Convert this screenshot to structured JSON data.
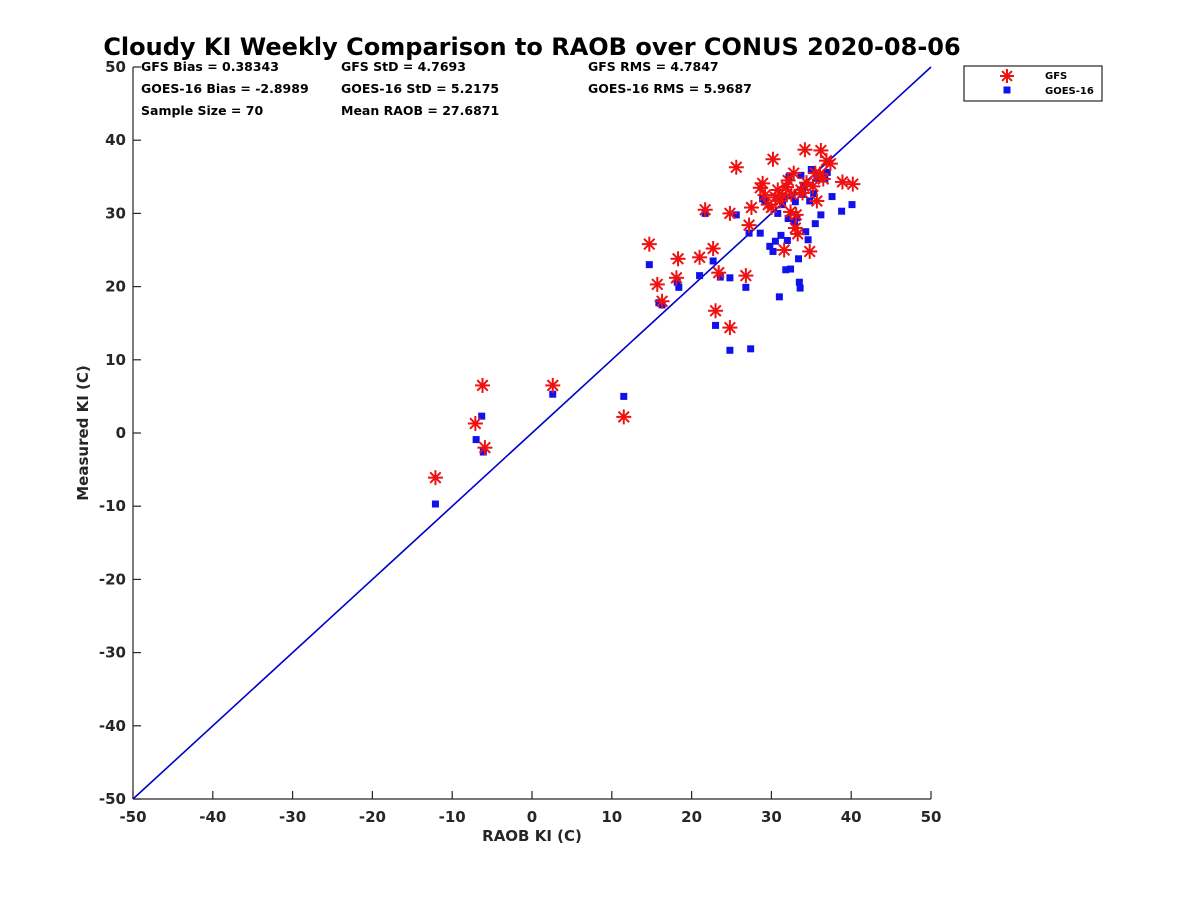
{
  "chart_data": {
    "type": "scatter",
    "title": "Cloudy KI Weekly Comparison to RAOB over CONUS 2020-08-06",
    "xlabel": "RAOB KI (C)",
    "ylabel": "Measured KI (C)",
    "xlim": [
      -50,
      50
    ],
    "ylim": [
      -50,
      50
    ],
    "xticks": [
      "-50",
      "-40",
      "-30",
      "-20",
      "-10",
      "0",
      "10",
      "20",
      "30",
      "40",
      "50"
    ],
    "yticks": [
      "-50",
      "-40",
      "-30",
      "-20",
      "-10",
      "0",
      "10",
      "20",
      "30",
      "40",
      "50"
    ],
    "grid": false,
    "legend_position": "top-right (outside)",
    "stats": [
      "GFS Bias = 0.38343",
      "GFS StD = 4.7693",
      "GFS RMS = 4.7847",
      "GOES-16 Bias = -2.8989",
      "GOES-16 StD = 5.2175",
      "GOES-16 RMS = 5.9687",
      "Sample Size = 70",
      "Mean RAOB = 27.6871"
    ],
    "reference_line": {
      "x": [
        -50,
        50
      ],
      "y": [
        -50,
        50
      ],
      "color": "#0000cc"
    },
    "series": [
      {
        "name": "GFS",
        "marker": "asterisk",
        "color": "#ee1111",
        "points": [
          [
            -12.1,
            -6.1
          ],
          [
            -7.1,
            1.3
          ],
          [
            -6.2,
            6.5
          ],
          [
            -5.9,
            -2.0
          ],
          [
            2.6,
            6.5
          ],
          [
            11.5,
            2.2
          ],
          [
            14.7,
            25.8
          ],
          [
            15.7,
            20.3
          ],
          [
            16.3,
            18.0
          ],
          [
            18.1,
            21.2
          ],
          [
            18.3,
            23.8
          ],
          [
            21.0,
            24.0
          ],
          [
            21.7,
            30.5
          ],
          [
            22.7,
            25.2
          ],
          [
            23.0,
            16.7
          ],
          [
            23.4,
            21.9
          ],
          [
            24.8,
            14.4
          ],
          [
            24.8,
            30.0
          ],
          [
            25.6,
            36.3
          ],
          [
            26.8,
            21.5
          ],
          [
            27.2,
            28.4
          ],
          [
            27.5,
            30.8
          ],
          [
            28.6,
            33.5
          ],
          [
            28.9,
            34.1
          ],
          [
            29.2,
            32.5
          ],
          [
            29.6,
            31.2
          ],
          [
            30.0,
            30.8
          ],
          [
            30.2,
            37.4
          ],
          [
            30.5,
            32.2
          ],
          [
            30.8,
            33.2
          ],
          [
            31.1,
            31.7
          ],
          [
            31.4,
            32.5
          ],
          [
            31.6,
            25.0
          ],
          [
            31.9,
            33.6
          ],
          [
            32.1,
            34.5
          ],
          [
            32.4,
            30.2
          ],
          [
            32.5,
            32.6
          ],
          [
            32.8,
            35.5
          ],
          [
            33.0,
            28.0
          ],
          [
            33.1,
            29.8
          ],
          [
            33.3,
            27.2
          ],
          [
            33.7,
            33.2
          ],
          [
            33.9,
            32.8
          ],
          [
            34.2,
            38.7
          ],
          [
            34.4,
            34.2
          ],
          [
            34.8,
            24.8
          ],
          [
            35.2,
            33.7
          ],
          [
            35.5,
            35.5
          ],
          [
            35.7,
            31.7
          ],
          [
            36.1,
            35.4
          ],
          [
            36.2,
            38.6
          ],
          [
            36.5,
            34.7
          ],
          [
            36.9,
            37.2
          ],
          [
            37.4,
            36.8
          ],
          [
            38.9,
            34.3
          ],
          [
            40.2,
            34.0
          ]
        ]
      },
      {
        "name": "GOES-16",
        "marker": "square",
        "color": "#1111ee",
        "points": [
          [
            -12.1,
            -9.7
          ],
          [
            -7.0,
            -0.9
          ],
          [
            -6.3,
            2.3
          ],
          [
            -6.1,
            -2.6
          ],
          [
            2.6,
            5.3
          ],
          [
            11.5,
            5.0
          ],
          [
            14.7,
            23.0
          ],
          [
            15.9,
            17.8
          ],
          [
            16.3,
            17.5
          ],
          [
            18.2,
            20.6
          ],
          [
            18.4,
            19.9
          ],
          [
            21.0,
            21.5
          ],
          [
            21.7,
            30.0
          ],
          [
            22.7,
            23.5
          ],
          [
            23.0,
            14.7
          ],
          [
            23.6,
            21.3
          ],
          [
            24.8,
            11.3
          ],
          [
            24.8,
            21.2
          ],
          [
            25.6,
            29.8
          ],
          [
            26.8,
            19.9
          ],
          [
            27.2,
            27.3
          ],
          [
            27.4,
            11.5
          ],
          [
            28.6,
            27.3
          ],
          [
            28.9,
            32.0
          ],
          [
            29.2,
            31.7
          ],
          [
            29.8,
            25.5
          ],
          [
            30.2,
            24.8
          ],
          [
            30.5,
            26.2
          ],
          [
            30.8,
            30.0
          ],
          [
            31.0,
            18.6
          ],
          [
            31.2,
            27.0
          ],
          [
            31.4,
            31.2
          ],
          [
            31.6,
            32.0
          ],
          [
            31.8,
            22.3
          ],
          [
            32.0,
            26.3
          ],
          [
            32.1,
            29.3
          ],
          [
            32.2,
            35.0
          ],
          [
            32.4,
            22.4
          ],
          [
            32.6,
            32.4
          ],
          [
            32.9,
            28.8
          ],
          [
            33.0,
            31.6
          ],
          [
            33.2,
            29.4
          ],
          [
            33.4,
            23.8
          ],
          [
            33.5,
            20.6
          ],
          [
            33.6,
            19.8
          ],
          [
            33.7,
            35.2
          ],
          [
            33.9,
            32.6
          ],
          [
            34.1,
            33.8
          ],
          [
            34.3,
            27.5
          ],
          [
            34.6,
            26.4
          ],
          [
            34.8,
            31.7
          ],
          [
            35.0,
            36.0
          ],
          [
            35.3,
            32.7
          ],
          [
            35.5,
            28.6
          ],
          [
            35.7,
            34.8
          ],
          [
            36.2,
            29.8
          ],
          [
            36.4,
            35.2
          ],
          [
            36.7,
            34.7
          ],
          [
            37.0,
            35.6
          ],
          [
            37.6,
            32.3
          ],
          [
            38.8,
            30.3
          ],
          [
            40.1,
            31.2
          ]
        ]
      }
    ]
  }
}
